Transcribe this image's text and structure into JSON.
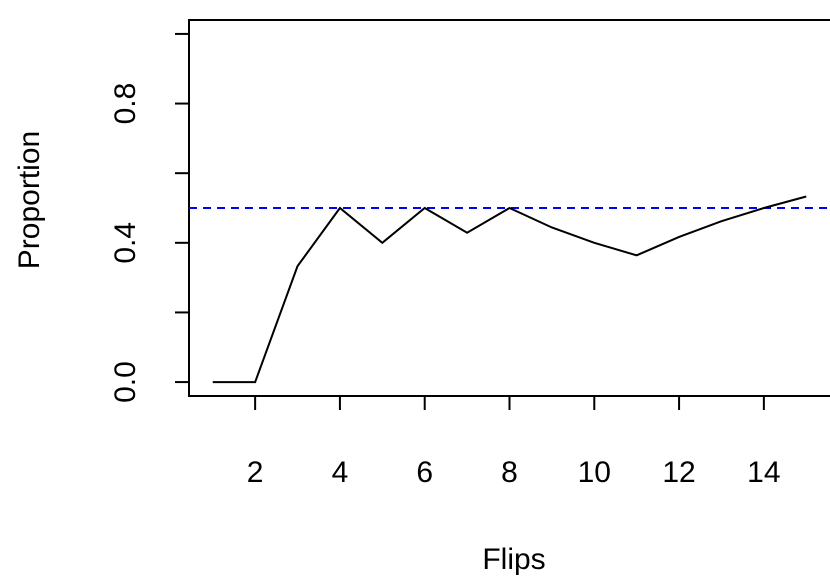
{
  "chart_data": {
    "type": "line",
    "title": "",
    "xlabel": "Flips",
    "ylabel": "Proportion",
    "xlim": [
      0.44,
      15.56
    ],
    "ylim": [
      -0.04,
      1.04
    ],
    "x_ticks": [
      2,
      4,
      6,
      8,
      10,
      12,
      14
    ],
    "y_ticks": [
      0.0,
      0.2,
      0.4,
      0.6,
      0.8,
      1.0
    ],
    "y_tick_labels": [
      "0.0",
      "",
      "0.4",
      "",
      "0.8",
      ""
    ],
    "x_tick_labels": [
      "2",
      "4",
      "6",
      "8",
      "10",
      "12",
      "14"
    ],
    "grid": false,
    "series": [
      {
        "color": "#000000",
        "style": "solid",
        "x": [
          1,
          2,
          3,
          4,
          5,
          6,
          7,
          8,
          9,
          10,
          11,
          12,
          13,
          14,
          15
        ],
        "y": [
          0.0,
          0.0,
          0.333,
          0.5,
          0.4,
          0.5,
          0.429,
          0.5,
          0.444,
          0.4,
          0.364,
          0.417,
          0.462,
          0.5,
          0.533
        ]
      }
    ],
    "reference_line": {
      "y": 0.5,
      "color": "#0000ff",
      "style": "dashed"
    }
  }
}
